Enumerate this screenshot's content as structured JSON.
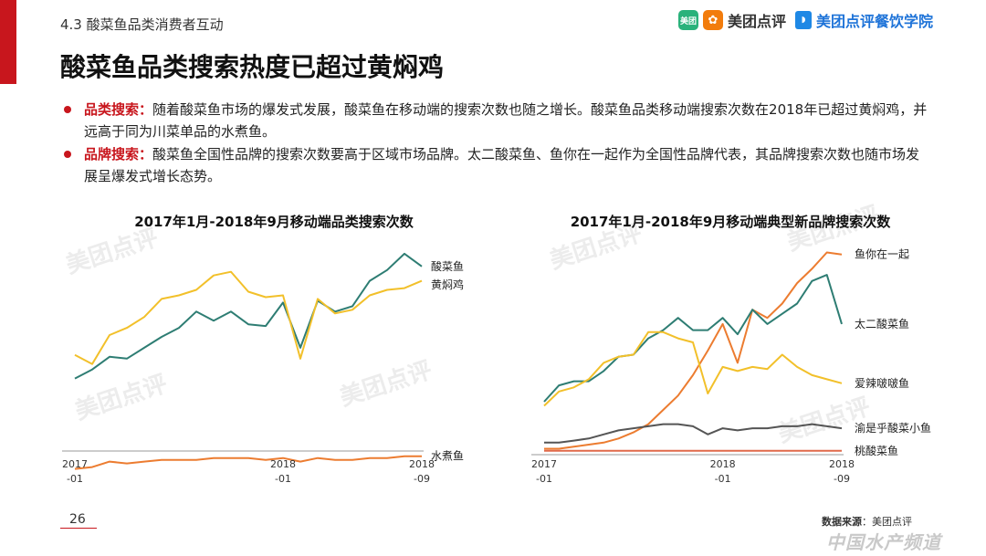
{
  "header": {
    "section_label": "4.3 酸菜鱼品类消费者互动",
    "logo1_badge": "美团",
    "logo1_text": "美团点评",
    "logo2_text": "美团点评餐饮学院",
    "page_title": "酸菜鱼品类搜索热度已超过黄焖鸡"
  },
  "bullets": [
    {
      "key": "品类搜索：",
      "text": "随着酸菜鱼市场的爆发式发展，酸菜鱼在移动端的搜索次数也随之增长。酸菜鱼品类移动端搜索次数在2018年已超过黄焖鸡，并远高于同为川菜单品的水煮鱼。"
    },
    {
      "key": "品牌搜索：",
      "text": "酸菜鱼全国性品牌的搜索次数要高于区域市场品牌。太二酸菜鱼、鱼你在一起作为全国性品牌代表，其品牌搜索次数也随市场发展呈爆发式增长态势。"
    }
  ],
  "watermark": "美团点评",
  "chart_data": [
    {
      "type": "line",
      "title": "2017年1月-2018年9月移动端品类搜索次数",
      "x": [
        "2017-01",
        "2017-02",
        "2017-03",
        "2017-04",
        "2017-05",
        "2017-06",
        "2017-07",
        "2017-08",
        "2017-09",
        "2017-10",
        "2017-11",
        "2017-12",
        "2018-01",
        "2018-02",
        "2018-03",
        "2018-04",
        "2018-05",
        "2018-06",
        "2018-07",
        "2018-08",
        "2018-09"
      ],
      "tick_labels": [
        {
          "index": 0,
          "line1": "2017",
          "line2": "-01"
        },
        {
          "index": 12,
          "line1": "2018",
          "line2": "-01"
        },
        {
          "index": 20,
          "line1": "2018",
          "line2": "-09"
        }
      ],
      "ylim": [
        0,
        100
      ],
      "series": [
        {
          "name": "酸菜鱼",
          "color": "#2e7d73",
          "values": [
            28,
            33,
            40,
            39,
            45,
            51,
            56,
            65,
            60,
            65,
            58,
            57,
            70,
            45,
            71,
            65,
            68,
            82,
            88,
            97,
            90
          ]
        },
        {
          "name": "黄焖鸡",
          "color": "#f2c02a",
          "values": [
            41,
            36,
            52,
            56,
            62,
            72,
            74,
            77,
            85,
            87,
            76,
            73,
            74,
            39,
            72,
            64,
            66,
            74,
            77,
            78,
            82
          ]
        },
        {
          "name": "水煮鱼",
          "color": "#ec7c30",
          "values": [
            -22,
            -21,
            -18,
            -19,
            -18,
            -17,
            -17,
            -17,
            -16,
            -16,
            -16,
            -17,
            -16,
            -18,
            -16,
            -17,
            -17,
            -16,
            -16,
            -15,
            -15
          ]
        }
      ]
    },
    {
      "type": "line",
      "title": "2017年1月-2018年9月移动端典型新品牌搜索次数",
      "x": [
        "2017-01",
        "2017-02",
        "2017-03",
        "2017-04",
        "2017-05",
        "2017-06",
        "2017-07",
        "2017-08",
        "2017-09",
        "2017-10",
        "2017-11",
        "2017-12",
        "2018-01",
        "2018-02",
        "2018-03",
        "2018-04",
        "2018-05",
        "2018-06",
        "2018-07",
        "2018-08",
        "2018-09"
      ],
      "tick_labels": [
        {
          "index": 0,
          "line1": "2017",
          "line2": "-01"
        },
        {
          "index": 12,
          "line1": "2018",
          "line2": "-01"
        },
        {
          "index": 20,
          "line1": "2018",
          "line2": "-09"
        }
      ],
      "ylim": [
        0,
        100
      ],
      "series": [
        {
          "name": "鱼你在一起",
          "color": "#ec7c30",
          "values": [
            2,
            2,
            3,
            4,
            5,
            7,
            10,
            14,
            21,
            28,
            38,
            50,
            63,
            44,
            70,
            66,
            73,
            83,
            90,
            98,
            97
          ]
        },
        {
          "name": "太二酸菜鱼",
          "color": "#2e7d73",
          "values": [
            25,
            33,
            35,
            35,
            40,
            47,
            48,
            56,
            60,
            66,
            60,
            60,
            66,
            58,
            70,
            63,
            68,
            73,
            84,
            87,
            63
          ]
        },
        {
          "name": "爱辣啵啵鱼",
          "color": "#f2c02a",
          "values": [
            23,
            30,
            32,
            36,
            44,
            47,
            48,
            59,
            59,
            56,
            54,
            29,
            42,
            40,
            42,
            41,
            48,
            42,
            38,
            36,
            34
          ]
        },
        {
          "name": "渝是乎酸菜小鱼",
          "color": "#555555",
          "values": [
            5,
            5,
            6,
            7,
            9,
            11,
            12,
            13,
            14,
            14,
            13,
            9,
            12,
            11,
            12,
            12,
            13,
            13,
            14,
            13,
            12
          ]
        },
        {
          "name": "桃酸菜鱼",
          "color": "#e0694a",
          "values": [
            1,
            1,
            1,
            1,
            1,
            1,
            1,
            1,
            1,
            1,
            1,
            1,
            1,
            1,
            1,
            1,
            1,
            1,
            1,
            1,
            1
          ]
        }
      ]
    }
  ],
  "footer": {
    "page_number": "26",
    "source_label": "数据来源",
    "source_value": "：美团点评",
    "channel_watermark": "中国水产频道"
  }
}
